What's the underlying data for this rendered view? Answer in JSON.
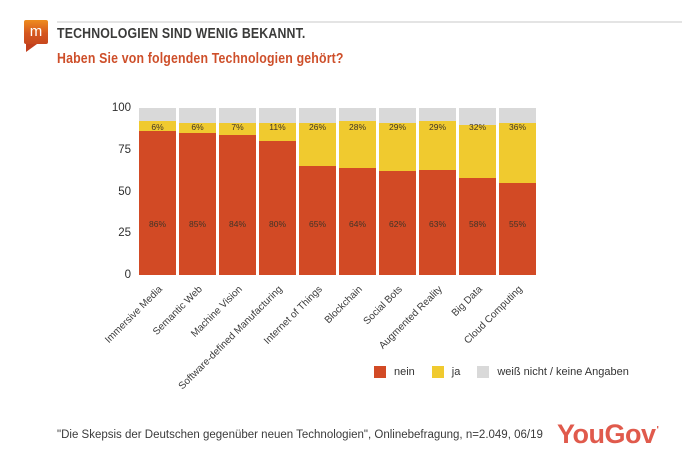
{
  "header": {
    "logo_letter": "m",
    "title": "TECHNOLOGIEN SIND WENIG BEKANNT.",
    "subtitle": "Haben Sie von folgenden Technologien gehört?"
  },
  "chart_data": {
    "type": "bar",
    "stacked": true,
    "categories": [
      "Immersive Media",
      "Semantic Web",
      "Machine Vision",
      "Software-defined Manufacturing",
      "Internet of Things",
      "Blockchain",
      "Social Bots",
      "Augmented Reality",
      "Big Data",
      "Cloud Computing"
    ],
    "series": [
      {
        "name": "nein",
        "color": "#d24a25",
        "values": [
          86,
          85,
          84,
          80,
          65,
          64,
          62,
          63,
          58,
          55
        ],
        "labels_shown": true
      },
      {
        "name": "ja",
        "color": "#f0ca2f",
        "values": [
          6,
          6,
          7,
          11,
          26,
          28,
          29,
          29,
          32,
          36
        ],
        "labels_shown": true
      },
      {
        "name": "weiß nicht / keine Angaben",
        "color": "#d9d9d9",
        "values": [
          8,
          9,
          9,
          9,
          9,
          8,
          9,
          8,
          10,
          9
        ],
        "labels_shown": false
      }
    ],
    "y_ticks": [
      100,
      75,
      50,
      25,
      0
    ],
    "ylim": [
      0,
      100
    ],
    "grid": false,
    "legend_position": "bottom"
  },
  "footer": {
    "source": "\"Die Skepsis der Deutschen gegenüber neuen Technologien\", Onlinebefragung, n=2.049, 06/19",
    "brand": "YouGov",
    "brand_mark": "'"
  },
  "colors": {
    "accent_red": "#d24a25",
    "accent_yellow": "#f0ca2f",
    "neutral_gray": "#d9d9d9",
    "subtitle_red": "#ce4f2a",
    "title_gray": "#3b3b3a",
    "brand_red": "#e05a4c"
  }
}
